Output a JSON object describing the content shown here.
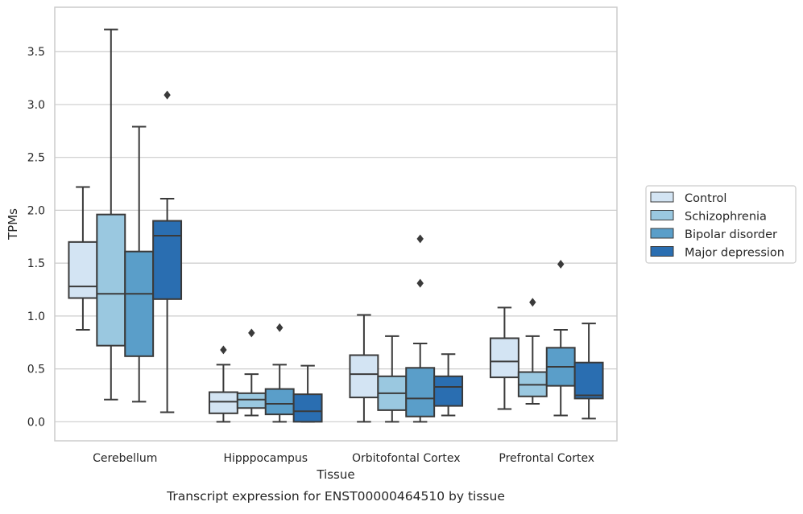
{
  "chart_data": {
    "type": "box",
    "title": "",
    "caption": "Transcript expression for ENST00000464510 by tissue",
    "xlabel": "Tissue",
    "ylabel": "TPMs",
    "ylim": [
      -0.18,
      3.92
    ],
    "yticks": [
      0.0,
      0.5,
      1.0,
      1.5,
      2.0,
      2.5,
      3.0,
      3.5
    ],
    "ytick_labels": [
      "0.0",
      "0.5",
      "1.0",
      "1.5",
      "2.0",
      "2.5",
      "3.0",
      "3.5"
    ],
    "grid": "horizontal",
    "legend_position": "right",
    "categories": [
      "Cerebellum",
      "Hipppocampus",
      "Orbitofontal Cortex",
      "Prefrontal Cortex"
    ],
    "series": [
      {
        "name": "Control",
        "color": "#d3e4f3",
        "boxes": [
          {
            "whislo": 0.87,
            "q1": 1.17,
            "med": 1.28,
            "q3": 1.7,
            "whishi": 2.22,
            "fliers": []
          },
          {
            "whislo": 0.0,
            "q1": 0.08,
            "med": 0.19,
            "q3": 0.28,
            "whishi": 0.54,
            "fliers": [
              0.68
            ]
          },
          {
            "whislo": 0.0,
            "q1": 0.23,
            "med": 0.45,
            "q3": 0.63,
            "whishi": 1.01,
            "fliers": []
          },
          {
            "whislo": 0.12,
            "q1": 0.42,
            "med": 0.57,
            "q3": 0.79,
            "whishi": 1.08,
            "fliers": []
          }
        ]
      },
      {
        "name": "Schizophrenia",
        "color": "#9ac8e0",
        "boxes": [
          {
            "whislo": 0.21,
            "q1": 0.72,
            "med": 1.21,
            "q3": 1.96,
            "whishi": 3.71,
            "fliers": []
          },
          {
            "whislo": 0.06,
            "q1": 0.13,
            "med": 0.21,
            "q3": 0.27,
            "whishi": 0.45,
            "fliers": [
              0.84
            ]
          },
          {
            "whislo": 0.0,
            "q1": 0.11,
            "med": 0.27,
            "q3": 0.43,
            "whishi": 0.81,
            "fliers": []
          },
          {
            "whislo": 0.17,
            "q1": 0.24,
            "med": 0.35,
            "q3": 0.47,
            "whishi": 0.81,
            "fliers": [
              1.13
            ]
          }
        ]
      },
      {
        "name": "Bipolar disorder",
        "color": "#5a9ec9",
        "boxes": [
          {
            "whislo": 0.19,
            "q1": 0.62,
            "med": 1.21,
            "q3": 1.61,
            "whishi": 2.79,
            "fliers": []
          },
          {
            "whislo": 0.0,
            "q1": 0.07,
            "med": 0.17,
            "q3": 0.31,
            "whishi": 0.54,
            "fliers": [
              0.89
            ]
          },
          {
            "whislo": 0.0,
            "q1": 0.05,
            "med": 0.22,
            "q3": 0.51,
            "whishi": 0.74,
            "fliers": [
              1.31,
              1.73
            ]
          },
          {
            "whislo": 0.06,
            "q1": 0.34,
            "med": 0.52,
            "q3": 0.7,
            "whishi": 0.87,
            "fliers": [
              1.49
            ]
          }
        ]
      },
      {
        "name": "Major depression",
        "color": "#2a6eb1",
        "boxes": [
          {
            "whislo": 0.09,
            "q1": 1.16,
            "med": 1.76,
            "q3": 1.9,
            "whishi": 2.11,
            "fliers": [
              3.09
            ]
          },
          {
            "whislo": 0.0,
            "q1": 0.0,
            "med": 0.1,
            "q3": 0.26,
            "whishi": 0.53,
            "fliers": []
          },
          {
            "whislo": 0.06,
            "q1": 0.15,
            "med": 0.33,
            "q3": 0.43,
            "whishi": 0.64,
            "fliers": []
          },
          {
            "whislo": 0.03,
            "q1": 0.22,
            "med": 0.25,
            "q3": 0.56,
            "whishi": 0.93,
            "fliers": []
          }
        ]
      }
    ]
  }
}
